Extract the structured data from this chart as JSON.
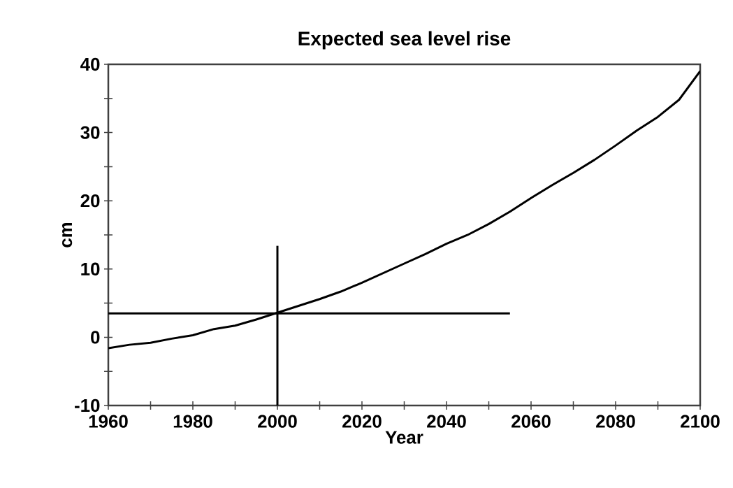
{
  "chart_data": {
    "type": "line",
    "title": "Expected sea level rise",
    "xlabel": "Year",
    "ylabel": "cm",
    "xlim": [
      1960,
      2100
    ],
    "ylim": [
      -10,
      40
    ],
    "xticks": [
      1960,
      {
        "value": 1970,
        "label": null
      },
      1980,
      {
        "value": 1990,
        "label": null
      },
      2000,
      {
        "value": 2010,
        "label": null
      },
      2020,
      {
        "value": 2030,
        "label": null
      },
      2040,
      {
        "value": 2050,
        "label": null
      },
      2060,
      {
        "value": 2070,
        "label": null
      },
      2080,
      {
        "value": 2090,
        "label": null
      },
      2100
    ],
    "yticks": [
      -10,
      {
        "value": -5,
        "label": null
      },
      0,
      {
        "value": 5,
        "label": null
      },
      10,
      {
        "value": 15,
        "label": null
      },
      20,
      {
        "value": 25,
        "label": null
      },
      30,
      {
        "value": 35,
        "label": null
      },
      40
    ],
    "grid": false,
    "marker": "none",
    "series": [
      {
        "color": "#000000",
        "x": [
          1960,
          1965,
          1970,
          1975,
          1980,
          1985,
          1990,
          1995,
          2000,
          2005,
          2010,
          2015,
          2020,
          2025,
          2030,
          2035,
          2040,
          2045,
          2050,
          2055,
          2060,
          2065,
          2070,
          2075,
          2080,
          2085,
          2090,
          2095,
          2100
        ],
        "values": [
          -1.6,
          -1.1,
          -0.8,
          -0.2,
          0.3,
          1.2,
          1.7,
          2.6,
          3.6,
          4.6,
          5.6,
          6.7,
          8.0,
          9.4,
          10.8,
          12.2,
          13.7,
          15.0,
          16.6,
          18.4,
          20.4,
          22.3,
          24.1,
          26.0,
          28.1,
          30.3,
          32.3,
          34.8,
          39.0
        ]
      },
      {
        "color": "#000000",
        "x": [
          1960,
          2055
        ],
        "values": [
          3.5,
          3.5
        ]
      },
      {
        "color": "#000000",
        "x": [
          2000,
          2000
        ],
        "values": [
          -10,
          13.4
        ]
      }
    ]
  }
}
